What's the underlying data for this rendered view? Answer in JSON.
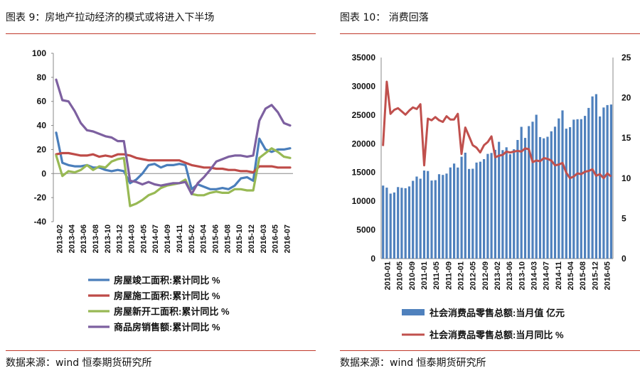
{
  "left": {
    "title": "图表 9：房地产拉动经济的模式或将进入下半场",
    "source": "数据来源：wind   恒泰期货研究所"
  },
  "right": {
    "title": "图表 10：  消费回落",
    "source": "数据来源：wind   恒泰期货研究所"
  },
  "chart_data": [
    {
      "type": "line",
      "title": "",
      "xlabel": "",
      "ylabel": "",
      "ylim": [
        -40,
        100
      ],
      "yticks": [
        -40,
        -20,
        0,
        20,
        40,
        60,
        80,
        100
      ],
      "tick_labels": [
        "2013-02",
        "2013-04",
        "2013-06",
        "2013-08",
        "2013-10",
        "2013-12",
        "2014-03",
        "2014-05",
        "2014-07",
        "2014-09",
        "2014-11",
        "2015-02",
        "2015-04",
        "2015-06",
        "2015-08",
        "2015-10",
        "2015-12",
        "2016-03",
        "2016-05",
        "2016-07"
      ],
      "x": [
        "2013-02",
        "2013-03",
        "2013-04",
        "2013-05",
        "2013-06",
        "2013-07",
        "2013-08",
        "2013-09",
        "2013-10",
        "2013-11",
        "2013-12",
        "2014-02",
        "2014-03",
        "2014-04",
        "2014-05",
        "2014-06",
        "2014-07",
        "2014-08",
        "2014-09",
        "2014-10",
        "2014-11",
        "2014-12",
        "2015-02",
        "2015-03",
        "2015-04",
        "2015-05",
        "2015-06",
        "2015-07",
        "2015-08",
        "2015-09",
        "2015-10",
        "2015-11",
        "2015-12",
        "2016-02",
        "2016-03",
        "2016-04",
        "2016-05",
        "2016-06",
        "2016-07"
      ],
      "legend_position": "bottom",
      "series": [
        {
          "name": "房屋竣工面积:累计同比 %",
          "color": "#4a7ebb",
          "values": [
            34,
            9,
            7,
            6,
            6,
            7,
            5,
            5,
            3,
            2,
            3,
            2,
            -8,
            -5,
            0,
            7,
            8,
            5,
            7,
            7,
            8,
            7,
            -13,
            -9,
            -11,
            -13,
            -13,
            -12,
            -13,
            -10,
            -4,
            -3,
            -6,
            29,
            20,
            18,
            20,
            20,
            21
          ]
        },
        {
          "name": "房屋施工面积:累计同比 %",
          "color": "#be4b48",
          "values": [
            16,
            17,
            17,
            16,
            15,
            15,
            16,
            14,
            15,
            14,
            16,
            16,
            15,
            13,
            12,
            11,
            11,
            11,
            11,
            11,
            11,
            9,
            7,
            6,
            5,
            5,
            4,
            4,
            3,
            3,
            2,
            2,
            1,
            6,
            6,
            6,
            5,
            5,
            5
          ]
        },
        {
          "name": "房屋新开工面积:累计同比 %",
          "color": "#98b954",
          "values": [
            15,
            -2,
            2,
            1,
            3,
            7,
            3,
            6,
            5,
            10,
            12,
            13,
            -27,
            -25,
            -22,
            -18,
            -16,
            -12,
            -10,
            -9,
            -8,
            -5,
            -17,
            -18,
            -18,
            -16,
            -15,
            -16,
            -16,
            -13,
            -13,
            -14,
            -14,
            13,
            17,
            21,
            18,
            14,
            13
          ]
        },
        {
          "name": "商品房销售额:累计同比 %",
          "color": "#7d60a0",
          "values": [
            78,
            61,
            60,
            52,
            42,
            36,
            35,
            33,
            31,
            30,
            27,
            27,
            -6,
            -7,
            -9,
            -7,
            -9,
            -10,
            -9,
            -8,
            -8,
            -7,
            -17,
            -8,
            -3,
            3,
            10,
            12,
            14,
            15,
            15,
            14,
            15,
            44,
            54,
            57,
            51,
            42,
            40
          ]
        }
      ]
    },
    {
      "type": "bar+line",
      "title": "",
      "xlabel": "",
      "ylabel": "",
      "ylim": [
        0,
        35000
      ],
      "yticks": [
        0,
        5000,
        10000,
        15000,
        20000,
        25000,
        30000,
        35000
      ],
      "y2lim": [
        0,
        25
      ],
      "y2ticks": [
        0,
        5,
        10,
        15,
        20,
        25
      ],
      "tick_labels": [
        "2010-01",
        "2010-05",
        "2010-09",
        "2011-01",
        "2011-05",
        "2011-09",
        "2012-01",
        "2012-05",
        "2012-09",
        "2013-02",
        "2013-06",
        "2013-10",
        "2014-03",
        "2014-07",
        "2014-11",
        "2015-04",
        "2015-08",
        "2015-12",
        "2016-05"
      ],
      "legend_position": "bottom",
      "series": [
        {
          "name": "社会消费品零售总额:当月值 亿元",
          "type": "bar",
          "color": "#4f81bd",
          "values": [
            12718,
            12351,
            11321,
            11510,
            12455,
            12331,
            12252,
            12570,
            13537,
            14284,
            13911,
            15330,
            15250,
            13588,
            13649,
            14697,
            14565,
            14805,
            15865,
            16547,
            15857,
            17739,
            18439,
            15603,
            15650,
            16715,
            16872,
            17314,
            18226,
            18387,
            18934,
            20334,
            18886,
            19385,
            18164,
            19035,
            20652,
            22945,
            21012,
            23060,
            23827,
            25050,
            21159,
            20942,
            21212,
            22164,
            22963,
            24397,
            25801,
            22620,
            22883,
            24185,
            24270,
            24272,
            24842,
            26236,
            28239,
            28634,
            24743,
            26306,
            26722,
            26826
          ]
        },
        {
          "name": "社会消费品零售总额:当月同比 %",
          "type": "line",
          "axis": "right",
          "color": "#c0504d",
          "values": [
            14,
            22,
            18,
            18.5,
            18.7,
            18.3,
            17.9,
            18.4,
            18.8,
            18.6,
            19.2,
            11.6,
            17.4,
            17.2,
            17.6,
            17.2,
            17,
            17.7,
            17.3,
            17.3,
            18,
            13,
            16.3,
            15.2,
            14.1,
            13.8,
            13.2,
            14.1,
            14.5,
            15.2,
            12.6,
            12.8,
            12.9,
            13.3,
            13.2,
            13.3,
            13.4,
            13.3,
            13.7,
            13.6,
            12,
            12.2,
            12.1,
            12.5,
            12.4,
            12.2,
            11.6,
            11.7,
            11.9,
            10.7,
            10,
            10.2,
            10.6,
            10.5,
            10.8,
            10.9,
            11.1,
            10.3,
            10.5,
            10,
            10.6,
            10.2
          ]
        }
      ]
    }
  ]
}
